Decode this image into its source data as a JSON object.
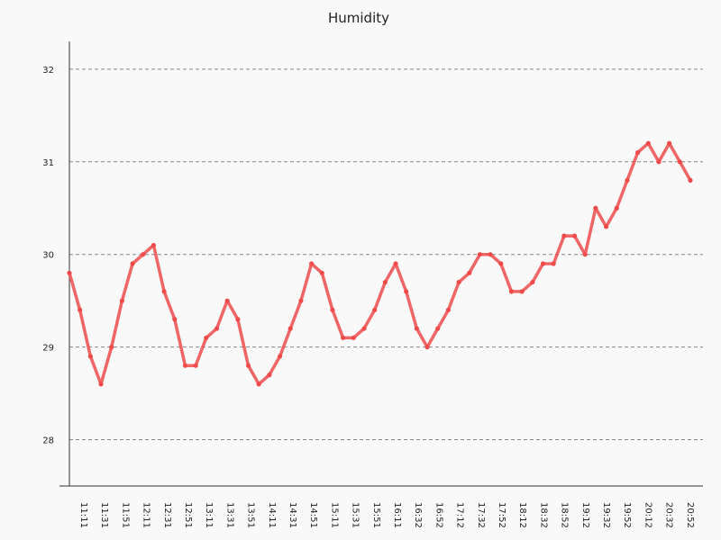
{
  "chart_data": {
    "type": "line",
    "title": "Humidity",
    "xlabel": "",
    "ylabel": "",
    "ylim": [
      27.5,
      32.3
    ],
    "yticks": [
      28,
      29,
      30,
      31,
      32
    ],
    "grid": true,
    "legend": "none",
    "color": "#ef4b4b",
    "xtick_labels": [
      "11:11",
      "11:31",
      "11:51",
      "12:11",
      "12:31",
      "12:51",
      "13:11",
      "13:31",
      "13:51",
      "14:11",
      "14:31",
      "14:51",
      "15:11",
      "15:31",
      "15:51",
      "16:11",
      "16:32",
      "16:52",
      "17:12",
      "17:32",
      "17:52",
      "18:12",
      "18:32",
      "18:52",
      "19:12",
      "19:32",
      "19:52",
      "20:12",
      "20:32",
      "20:52"
    ],
    "series": [
      {
        "values": [
          29.8,
          29.4,
          28.9,
          28.6,
          29.0,
          29.5,
          29.9,
          30.0,
          30.1,
          29.6,
          29.3,
          28.8,
          28.8,
          29.1,
          29.2,
          29.5,
          29.3,
          28.8,
          28.6,
          28.7,
          28.9,
          29.2,
          29.5,
          29.9,
          29.8,
          29.4,
          29.1,
          29.1,
          29.2,
          29.4,
          29.7,
          29.9,
          29.6,
          29.2,
          29.0,
          29.2,
          29.4,
          29.7,
          29.8,
          30.0,
          30.0,
          29.9,
          29.6,
          29.6,
          29.7,
          29.9,
          29.9,
          30.2,
          30.2,
          30.0,
          30.5,
          30.3,
          30.5,
          30.8,
          31.1,
          31.2,
          31.0,
          31.2,
          31.0,
          30.8
        ]
      }
    ]
  }
}
